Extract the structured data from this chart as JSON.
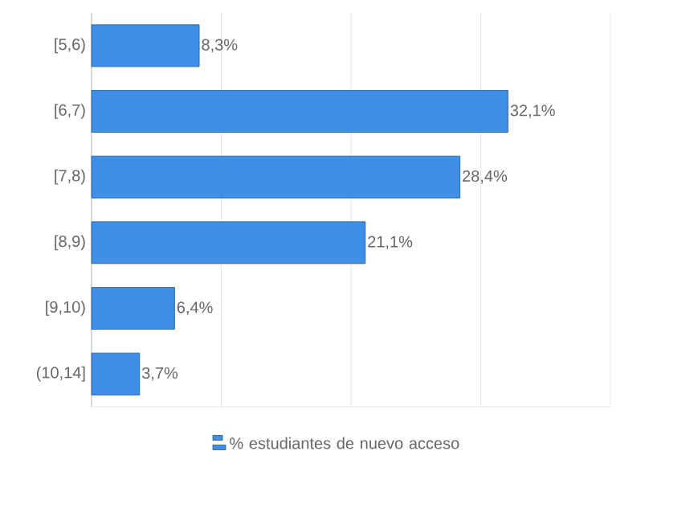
{
  "chart_data": {
    "type": "bar",
    "orientation": "horizontal",
    "categories": [
      "[5,6)",
      "[6,7)",
      "[7,8)",
      "[8,9)",
      "[9,10)",
      "(10,14]"
    ],
    "series": [
      {
        "name": "% estudiantes de nuevo acceso",
        "color": "#3d8fe8",
        "values": [
          8.3,
          32.1,
          28.4,
          21.1,
          6.4,
          3.7
        ],
        "value_labels": [
          "8,3%",
          "32,1%",
          "28,4%",
          "21,1%",
          "6,4%",
          "3,7%"
        ]
      }
    ],
    "xlim": [
      0,
      40
    ],
    "xticks": [
      {
        "value": 0,
        "label": null
      },
      {
        "value": 10,
        "label": null
      },
      {
        "value": 20,
        "label": null
      },
      {
        "value": 30,
        "label": null
      },
      {
        "value": 40,
        "label": null
      }
    ],
    "tick_labels": "y",
    "grid": "x",
    "legend": "bottom"
  }
}
